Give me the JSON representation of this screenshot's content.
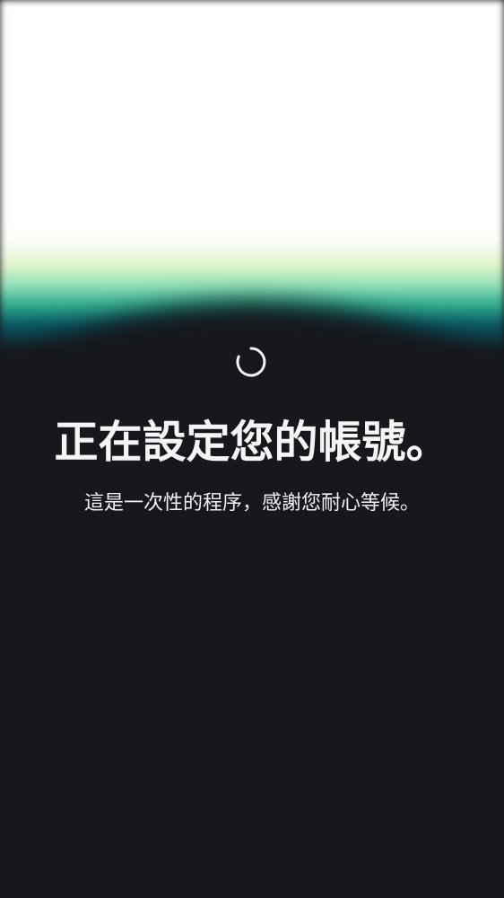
{
  "loading_screen": {
    "title": "正在設定您的帳號。",
    "subtitle": "這是一次性的程序，感謝您耐心等候。",
    "spinner_icon": "loading-spinner-icon"
  },
  "colors": {
    "background": "#16181c",
    "title_text": "#f4f5f7",
    "subtitle_text": "#f0f2f4",
    "spinner": "#f5f6f8",
    "glow_white": "#ffffff",
    "glow_green": "#8fe0b8",
    "glow_teal": "#0a5663"
  }
}
